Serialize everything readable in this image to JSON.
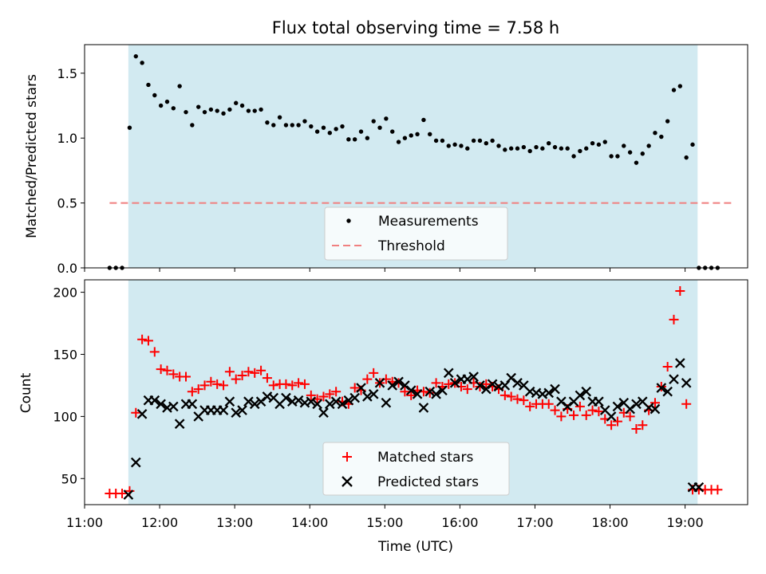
{
  "chart_data": [
    {
      "type": "scatter",
      "title": "Flux total observing time = 7.58 h",
      "xlabel": "",
      "ylabel": "Matched/Predicted stars",
      "xlim": [
        "11:00",
        "19:50"
      ],
      "ylim": [
        0,
        1.72
      ],
      "yticks": [
        "0.0",
        "0.5",
        "1.0",
        "1.5"
      ],
      "observing_span": [
        "11:35",
        "19:10"
      ],
      "grid": false,
      "legend": {
        "placement": "lower-center",
        "entries": [
          "Measurements",
          "Threshold"
        ]
      },
      "colors": {
        "points": "#000000",
        "threshold": "#f08080",
        "span": "#add8e6"
      },
      "series": [
        {
          "name": "Measurements",
          "x": [
            "11:20",
            "11:25",
            "11:30",
            "11:36",
            "11:41",
            "11:46",
            "11:51",
            "11:56",
            "12:01",
            "12:06",
            "12:11",
            "12:16",
            "12:21",
            "12:26",
            "12:31",
            "12:36",
            "12:41",
            "12:46",
            "12:51",
            "12:56",
            "13:01",
            "13:06",
            "13:11",
            "13:16",
            "13:21",
            "13:26",
            "13:31",
            "13:36",
            "13:41",
            "13:46",
            "13:51",
            "13:56",
            "14:01",
            "14:06",
            "14:11",
            "14:16",
            "14:21",
            "14:26",
            "14:31",
            "14:36",
            "14:41",
            "14:46",
            "14:51",
            "14:56",
            "15:01",
            "15:06",
            "15:11",
            "15:16",
            "15:21",
            "15:26",
            "15:31",
            "15:36",
            "15:41",
            "15:46",
            "15:51",
            "15:56",
            "16:01",
            "16:06",
            "16:11",
            "16:16",
            "16:21",
            "16:26",
            "16:31",
            "16:36",
            "16:41",
            "16:46",
            "16:51",
            "16:56",
            "17:01",
            "17:06",
            "17:11",
            "17:16",
            "17:21",
            "17:26",
            "17:31",
            "17:36",
            "17:41",
            "17:46",
            "17:51",
            "17:56",
            "18:01",
            "18:06",
            "18:11",
            "18:16",
            "18:21",
            "18:26",
            "18:31",
            "18:36",
            "18:41",
            "18:46",
            "18:51",
            "18:56",
            "19:01",
            "19:06",
            "19:11",
            "19:16",
            "19:21",
            "19:26"
          ],
          "values": [
            0,
            0,
            0,
            1.08,
            1.63,
            1.58,
            1.41,
            1.33,
            1.25,
            1.28,
            1.23,
            1.4,
            1.2,
            1.1,
            1.24,
            1.2,
            1.22,
            1.21,
            1.19,
            1.22,
            1.27,
            1.25,
            1.21,
            1.21,
            1.22,
            1.12,
            1.1,
            1.16,
            1.1,
            1.1,
            1.1,
            1.13,
            1.09,
            1.05,
            1.08,
            1.04,
            1.07,
            1.09,
            0.99,
            0.99,
            1.05,
            1.0,
            1.13,
            1.08,
            1.15,
            1.05,
            0.97,
            1.0,
            1.02,
            1.03,
            1.14,
            1.03,
            0.98,
            0.98,
            0.94,
            0.95,
            0.94,
            0.92,
            0.98,
            0.98,
            0.96,
            0.98,
            0.94,
            0.91,
            0.92,
            0.92,
            0.93,
            0.9,
            0.93,
            0.92,
            0.96,
            0.93,
            0.92,
            0.92,
            0.86,
            0.9,
            0.92,
            0.96,
            0.95,
            0.97,
            0.86,
            0.86,
            0.94,
            0.89,
            0.81,
            0.88,
            0.94,
            1.04,
            1.01,
            1.13,
            1.37,
            1.4,
            0.85,
            0.95,
            0,
            0,
            0,
            0
          ]
        },
        {
          "name": "Threshold",
          "x": [
            "11:20",
            "19:40"
          ],
          "values": [
            0.5,
            0.5
          ]
        }
      ]
    },
    {
      "type": "scatter",
      "title": "",
      "xlabel": "Time (UTC)",
      "ylabel": "Count",
      "xlim": [
        "11:00",
        "19:50"
      ],
      "ylim": [
        29,
        210
      ],
      "xticks": [
        "11:00",
        "12:00",
        "13:00",
        "14:00",
        "15:00",
        "16:00",
        "17:00",
        "18:00",
        "19:00"
      ],
      "yticks": [
        "50",
        "100",
        "150",
        "200"
      ],
      "observing_span": [
        "11:35",
        "19:10"
      ],
      "grid": false,
      "legend": {
        "placement": "lower-center",
        "entries": [
          "Matched stars",
          "Predicted stars"
        ]
      },
      "colors": {
        "matched": "#ff0000",
        "predicted": "#000000",
        "span": "#add8e6"
      },
      "series": [
        {
          "name": "Matched stars",
          "x": [
            "11:20",
            "11:25",
            "11:30",
            "11:36",
            "11:41",
            "11:46",
            "11:51",
            "11:56",
            "12:01",
            "12:06",
            "12:11",
            "12:16",
            "12:21",
            "12:26",
            "12:31",
            "12:36",
            "12:41",
            "12:46",
            "12:51",
            "12:56",
            "13:01",
            "13:06",
            "13:11",
            "13:16",
            "13:21",
            "13:26",
            "13:31",
            "13:36",
            "13:41",
            "13:46",
            "13:51",
            "13:56",
            "14:01",
            "14:06",
            "14:11",
            "14:16",
            "14:21",
            "14:26",
            "14:31",
            "14:36",
            "14:41",
            "14:46",
            "14:51",
            "14:56",
            "15:01",
            "15:06",
            "15:11",
            "15:16",
            "15:21",
            "15:26",
            "15:31",
            "15:36",
            "15:41",
            "15:46",
            "15:51",
            "15:56",
            "16:01",
            "16:06",
            "16:11",
            "16:16",
            "16:21",
            "16:26",
            "16:31",
            "16:36",
            "16:41",
            "16:46",
            "16:51",
            "16:56",
            "17:01",
            "17:06",
            "17:11",
            "17:16",
            "17:21",
            "17:26",
            "17:31",
            "17:36",
            "17:41",
            "17:46",
            "17:51",
            "17:56",
            "18:01",
            "18:06",
            "18:11",
            "18:16",
            "18:21",
            "18:26",
            "18:31",
            "18:36",
            "18:41",
            "18:46",
            "18:51",
            "18:56",
            "19:01",
            "19:06",
            "19:11",
            "19:16",
            "19:21",
            "19:26"
          ],
          "values": [
            38,
            38,
            38,
            40,
            103,
            162,
            161,
            152,
            138,
            137,
            134,
            132,
            132,
            120,
            122,
            125,
            128,
            126,
            125,
            136,
            130,
            133,
            136,
            135,
            137,
            131,
            125,
            126,
            126,
            125,
            127,
            126,
            117,
            114,
            116,
            118,
            120,
            112,
            110,
            123,
            121,
            130,
            135,
            127,
            130,
            128,
            127,
            120,
            117,
            121,
            120,
            119,
            127,
            124,
            126,
            127,
            124,
            122,
            127,
            124,
            126,
            124,
            122,
            117,
            116,
            114,
            113,
            108,
            110,
            110,
            110,
            105,
            100,
            106,
            101,
            108,
            101,
            105,
            104,
            98,
            93,
            96,
            103,
            100,
            90,
            93,
            105,
            111,
            124,
            140,
            178,
            201,
            110,
            41,
            41,
            41,
            41,
            41
          ]
        },
        {
          "name": "Predicted stars",
          "x": [
            "11:35",
            "11:41",
            "11:46",
            "11:51",
            "11:56",
            "12:01",
            "12:06",
            "12:11",
            "12:16",
            "12:21",
            "12:26",
            "12:31",
            "12:36",
            "12:41",
            "12:46",
            "12:51",
            "12:56",
            "13:01",
            "13:06",
            "13:11",
            "13:16",
            "13:21",
            "13:26",
            "13:31",
            "13:36",
            "13:41",
            "13:46",
            "13:51",
            "13:56",
            "14:01",
            "14:06",
            "14:11",
            "14:16",
            "14:21",
            "14:26",
            "14:31",
            "14:36",
            "14:41",
            "14:46",
            "14:51",
            "14:56",
            "15:01",
            "15:06",
            "15:11",
            "15:16",
            "15:21",
            "15:26",
            "15:31",
            "15:36",
            "15:41",
            "15:46",
            "15:51",
            "15:56",
            "16:01",
            "16:06",
            "16:11",
            "16:16",
            "16:21",
            "16:26",
            "16:31",
            "16:36",
            "16:41",
            "16:46",
            "16:51",
            "16:56",
            "17:01",
            "17:06",
            "17:11",
            "17:16",
            "17:21",
            "17:26",
            "17:31",
            "17:36",
            "17:41",
            "17:46",
            "17:51",
            "17:56",
            "18:01",
            "18:06",
            "18:11",
            "18:16",
            "18:21",
            "18:26",
            "18:31",
            "18:36",
            "18:41",
            "18:46",
            "18:51",
            "18:56",
            "19:01",
            "19:06",
            "19:11"
          ],
          "values": [
            37,
            63,
            102,
            113,
            113,
            110,
            107,
            108,
            94,
            110,
            110,
            100,
            105,
            105,
            105,
            105,
            112,
            103,
            105,
            112,
            110,
            112,
            116,
            115,
            110,
            115,
            112,
            113,
            111,
            112,
            110,
            103,
            110,
            112,
            110,
            113,
            115,
            123,
            116,
            118,
            127,
            111,
            125,
            128,
            125,
            121,
            118,
            107,
            120,
            118,
            121,
            135,
            127,
            130,
            130,
            132,
            125,
            122,
            126,
            124,
            125,
            131,
            127,
            125,
            120,
            119,
            118,
            119,
            122,
            112,
            108,
            112,
            117,
            120,
            112,
            112,
            105,
            100,
            108,
            111,
            106,
            110,
            112,
            107,
            106,
            123,
            120,
            130,
            143,
            127,
            43,
            43
          ]
        }
      ]
    }
  ]
}
